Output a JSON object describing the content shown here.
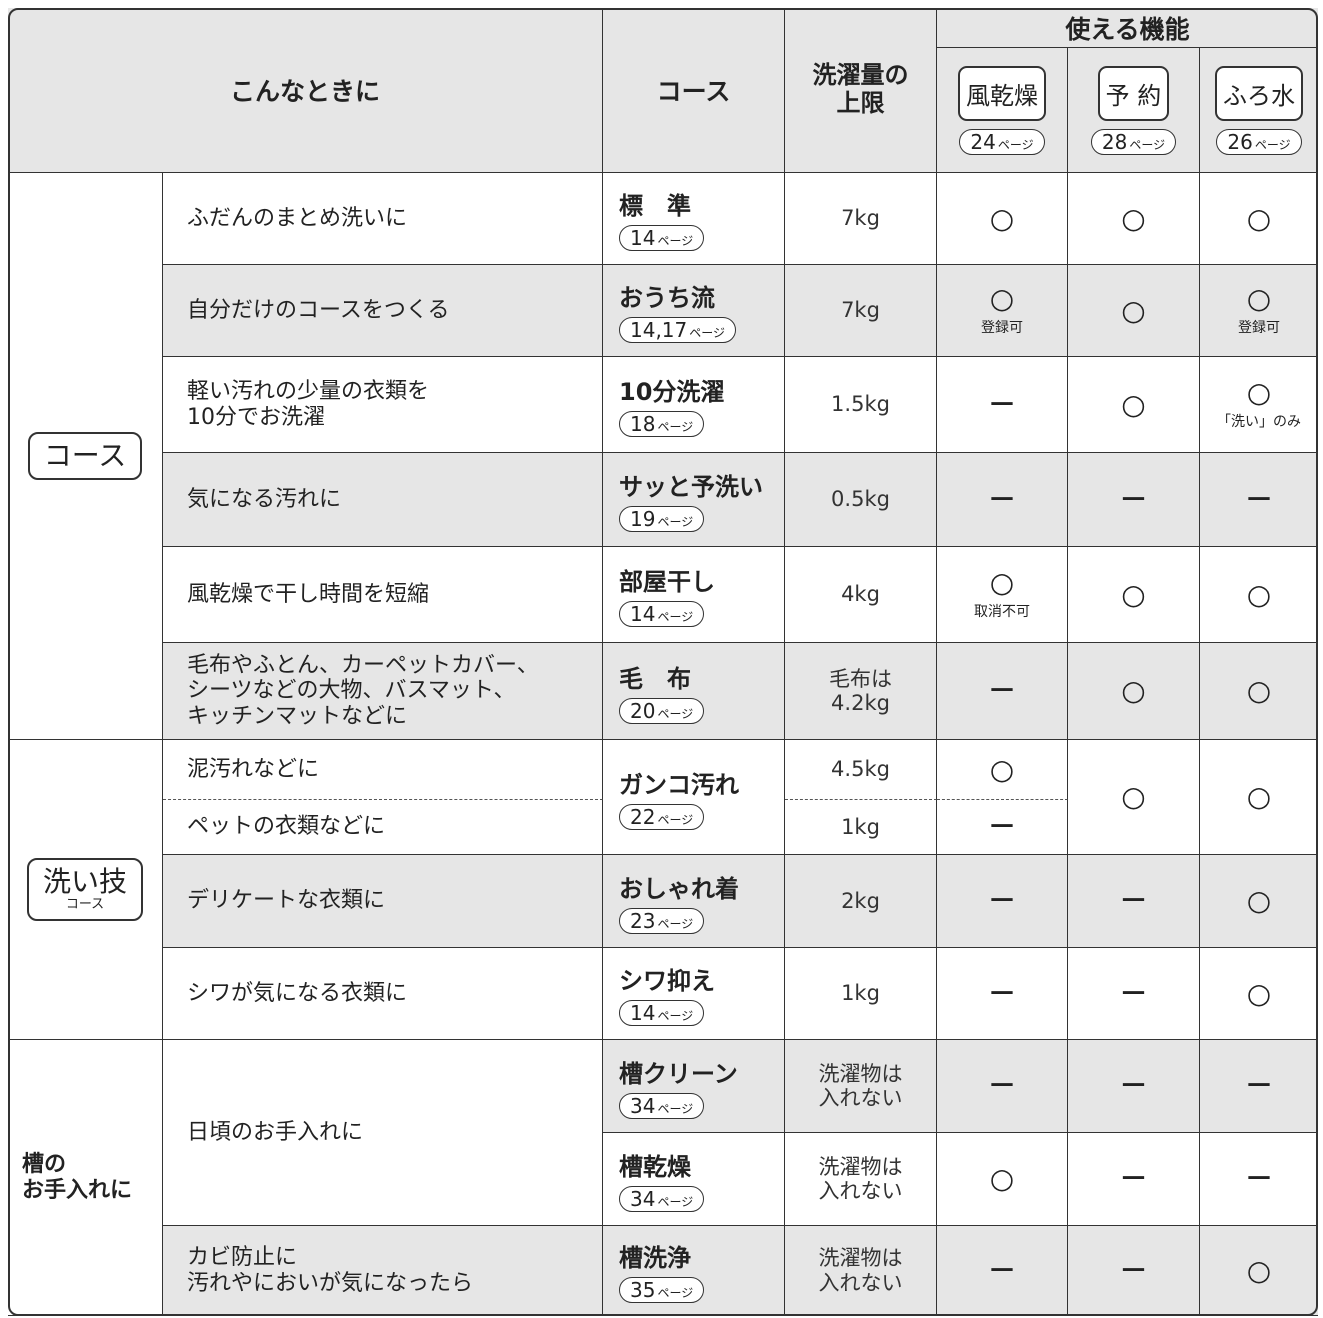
{
  "header": {
    "situation": "こんなときに",
    "course": "コース",
    "capacity": [
      "洗濯量の",
      "上限"
    ],
    "functions_title": "使える機能",
    "functions": [
      {
        "name": "風乾燥",
        "page": {
          "num": "24",
          "unit": "ページ"
        }
      },
      {
        "name": "予 約",
        "page": {
          "num": "28",
          "unit": "ページ"
        }
      },
      {
        "name": "ふろ水",
        "page": {
          "num": "26",
          "unit": "ページ"
        }
      }
    ]
  },
  "groups": [
    {
      "label": [
        "コース"
      ],
      "rows": [
        {
          "situations": [
            [
              "ふだんのまとめ洗いに"
            ]
          ],
          "course": "標　準",
          "page": {
            "num": "14",
            "unit": "ページ"
          },
          "capacities": [
            [
              "7kg"
            ]
          ],
          "functions": [
            {
              "marks": [
                "○"
              ]
            },
            {
              "marks": [
                "○"
              ]
            },
            {
              "marks": [
                "○"
              ]
            }
          ]
        },
        {
          "situations": [
            [
              "自分だけのコースをつくる"
            ]
          ],
          "course": "おうち流",
          "page": {
            "num": "14,17",
            "unit": "ページ"
          },
          "capacities": [
            [
              "7kg"
            ]
          ],
          "functions": [
            {
              "marks": [
                "○"
              ],
              "note": "登録可"
            },
            {
              "marks": [
                "○"
              ]
            },
            {
              "marks": [
                "○"
              ],
              "note": "登録可"
            }
          ]
        },
        {
          "situations": [
            [
              "軽い汚れの少量の衣類を",
              "10分でお洗濯"
            ]
          ],
          "course": "10分洗濯",
          "page": {
            "num": "18",
            "unit": "ページ"
          },
          "capacities": [
            [
              "1.5kg"
            ]
          ],
          "functions": [
            {
              "marks": [
                "－"
              ]
            },
            {
              "marks": [
                "○"
              ]
            },
            {
              "marks": [
                "○"
              ],
              "note": "「洗い」のみ"
            }
          ]
        },
        {
          "situations": [
            [
              "気になる汚れに"
            ]
          ],
          "course": "サッと予洗い",
          "page": {
            "num": "19",
            "unit": "ページ"
          },
          "capacities": [
            [
              "0.5kg"
            ]
          ],
          "functions": [
            {
              "marks": [
                "－"
              ]
            },
            {
              "marks": [
                "－"
              ]
            },
            {
              "marks": [
                "－"
              ]
            }
          ]
        },
        {
          "situations": [
            [
              "風乾燥で干し時間を短縮"
            ]
          ],
          "course": "部屋干し",
          "page": {
            "num": "14",
            "unit": "ページ"
          },
          "capacities": [
            [
              "4kg"
            ]
          ],
          "functions": [
            {
              "marks": [
                "○"
              ],
              "note": "取消不可"
            },
            {
              "marks": [
                "○"
              ]
            },
            {
              "marks": [
                "○"
              ]
            }
          ]
        },
        {
          "situations": [
            [
              "毛布やふとん、カーペットカバー、",
              "シーツなどの大物、バスマット、",
              "キッチンマットなどに"
            ]
          ],
          "course": "毛　布",
          "page": {
            "num": "20",
            "unit": "ページ"
          },
          "capacities": [
            [
              "毛布は",
              "4.2kg"
            ]
          ],
          "functions": [
            {
              "marks": [
                "－"
              ]
            },
            {
              "marks": [
                "○"
              ]
            },
            {
              "marks": [
                "○"
              ]
            }
          ]
        }
      ]
    },
    {
      "label": [
        "洗い技",
        "コース"
      ],
      "rows": [
        {
          "situations": [
            [
              "泥汚れなどに"
            ],
            [
              "ペットの衣類などに"
            ]
          ],
          "course": "ガンコ汚れ",
          "page": {
            "num": "22",
            "unit": "ページ"
          },
          "capacities": [
            [
              "4.5kg"
            ],
            [
              "1kg"
            ]
          ],
          "functions": [
            {
              "marks": [
                "○",
                "－"
              ]
            },
            {
              "marks": [
                "○"
              ]
            },
            {
              "marks": [
                "○"
              ]
            }
          ]
        },
        {
          "situations": [
            [
              "デリケートな衣類に"
            ]
          ],
          "course": "おしゃれ着",
          "page": {
            "num": "23",
            "unit": "ページ"
          },
          "capacities": [
            [
              "2kg"
            ]
          ],
          "functions": [
            {
              "marks": [
                "－"
              ]
            },
            {
              "marks": [
                "－"
              ]
            },
            {
              "marks": [
                "○"
              ]
            }
          ]
        },
        {
          "situations": [
            [
              "シワが気になる衣類に"
            ]
          ],
          "course": "シワ抑え",
          "page": {
            "num": "14",
            "unit": "ページ"
          },
          "capacities": [
            [
              "1kg"
            ]
          ],
          "functions": [
            {
              "marks": [
                "－"
              ]
            },
            {
              "marks": [
                "－"
              ]
            },
            {
              "marks": [
                "○"
              ]
            }
          ]
        }
      ]
    },
    {
      "label": [
        "槽の",
        "お手入れに"
      ],
      "rows": [
        {
          "situations": [
            [
              "日頃のお手入れに"
            ]
          ],
          "course": "槽クリーン",
          "page": {
            "num": "34",
            "unit": "ページ"
          },
          "capacities": [
            [
              "洗濯物は",
              "入れない"
            ]
          ],
          "functions": [
            {
              "marks": [
                "－"
              ]
            },
            {
              "marks": [
                "－"
              ]
            },
            {
              "marks": [
                "－"
              ]
            }
          ]
        },
        {
          "course": "槽乾燥",
          "page": {
            "num": "34",
            "unit": "ページ"
          },
          "capacities": [
            [
              "洗濯物は",
              "入れない"
            ]
          ],
          "functions": [
            {
              "marks": [
                "○"
              ]
            },
            {
              "marks": [
                "－"
              ]
            },
            {
              "marks": [
                "－"
              ]
            }
          ]
        },
        {
          "situations": [
            [
              "カビ防止に",
              "汚れやにおいが気になったら"
            ]
          ],
          "course": "槽洗浄",
          "page": {
            "num": "35",
            "unit": "ページ"
          },
          "capacities": [
            [
              "洗濯物は",
              "入れない"
            ]
          ],
          "functions": [
            {
              "marks": [
                "－"
              ]
            },
            {
              "marks": [
                "－"
              ]
            },
            {
              "marks": [
                "○"
              ]
            }
          ]
        }
      ]
    }
  ]
}
